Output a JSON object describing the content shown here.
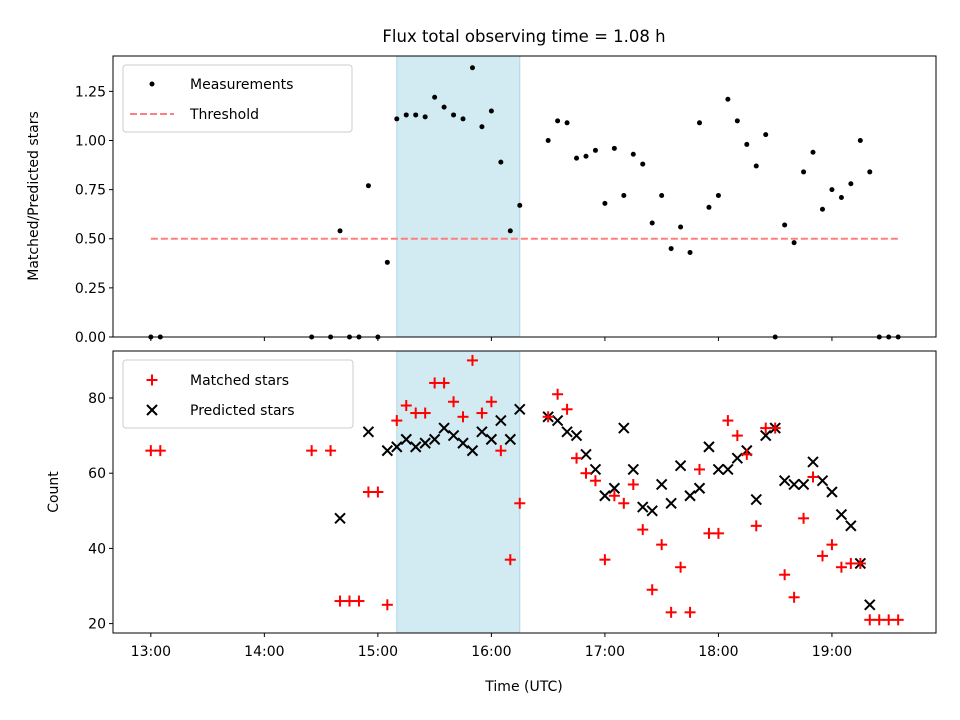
{
  "chart_data": [
    {
      "type": "scatter",
      "title": "Flux total observing time = 1.08 h",
      "xlabel": "",
      "ylabel": "Matched/Predicted stars",
      "xlim": [
        "12:40",
        "19:55"
      ],
      "ylim": [
        0,
        1.43
      ],
      "yticks": [
        "0.00",
        "0.25",
        "0.50",
        "0.75",
        "1.00",
        "1.25"
      ],
      "grid": false,
      "legend_position": "top-left",
      "highlight_span": {
        "start": "15:10",
        "end": "16:15",
        "color": "#add8e6"
      },
      "threshold": {
        "name": "Threshold",
        "value": 0.5,
        "x_start": "13:00",
        "x_end": "19:35",
        "color": "#ff7f7f",
        "style": "dashed"
      },
      "series": [
        {
          "name": "Measurements",
          "marker": "dot",
          "color": "#000000",
          "points": [
            [
              "13:00",
              0.0
            ],
            [
              "13:05",
              0.0
            ],
            [
              "14:25",
              0.0
            ],
            [
              "14:35",
              0.0
            ],
            [
              "14:40",
              0.54
            ],
            [
              "14:45",
              0.0
            ],
            [
              "14:50",
              0.0
            ],
            [
              "14:55",
              0.77
            ],
            [
              "15:00",
              0.0
            ],
            [
              "15:05",
              0.38
            ],
            [
              "15:10",
              1.11
            ],
            [
              "15:15",
              1.13
            ],
            [
              "15:20",
              1.13
            ],
            [
              "15:25",
              1.12
            ],
            [
              "15:30",
              1.22
            ],
            [
              "15:35",
              1.17
            ],
            [
              "15:40",
              1.13
            ],
            [
              "15:45",
              1.11
            ],
            [
              "15:50",
              1.37
            ],
            [
              "15:55",
              1.07
            ],
            [
              "16:00",
              1.15
            ],
            [
              "16:05",
              0.89
            ],
            [
              "16:10",
              0.54
            ],
            [
              "16:15",
              0.67
            ],
            [
              "16:30",
              1.0
            ],
            [
              "16:35",
              1.1
            ],
            [
              "16:40",
              1.09
            ],
            [
              "16:45",
              0.91
            ],
            [
              "16:50",
              0.92
            ],
            [
              "16:55",
              0.95
            ],
            [
              "17:00",
              0.68
            ],
            [
              "17:05",
              0.96
            ],
            [
              "17:10",
              0.72
            ],
            [
              "17:15",
              0.93
            ],
            [
              "17:20",
              0.88
            ],
            [
              "17:25",
              0.58
            ],
            [
              "17:30",
              0.72
            ],
            [
              "17:35",
              0.45
            ],
            [
              "17:40",
              0.56
            ],
            [
              "17:45",
              0.43
            ],
            [
              "17:50",
              1.09
            ],
            [
              "17:55",
              0.66
            ],
            [
              "18:00",
              0.72
            ],
            [
              "18:05",
              1.21
            ],
            [
              "18:10",
              1.1
            ],
            [
              "18:15",
              0.98
            ],
            [
              "18:20",
              0.87
            ],
            [
              "18:25",
              1.03
            ],
            [
              "18:30",
              0.0
            ],
            [
              "18:35",
              0.57
            ],
            [
              "18:40",
              0.48
            ],
            [
              "18:45",
              0.84
            ],
            [
              "18:50",
              0.94
            ],
            [
              "18:55",
              0.65
            ],
            [
              "19:00",
              0.75
            ],
            [
              "19:05",
              0.71
            ],
            [
              "19:10",
              0.78
            ],
            [
              "19:15",
              1.0
            ],
            [
              "19:20",
              0.84
            ],
            [
              "19:25",
              0.0
            ],
            [
              "19:30",
              0.0
            ],
            [
              "19:35",
              0.0
            ]
          ]
        }
      ]
    },
    {
      "type": "scatter",
      "title": "",
      "xlabel": "Time (UTC)",
      "ylabel": "Count",
      "xlim": [
        "12:40",
        "19:55"
      ],
      "ylim": [
        17.5,
        92.5
      ],
      "xticks": [
        "13:00",
        "14:00",
        "15:00",
        "16:00",
        "17:00",
        "18:00",
        "19:00"
      ],
      "yticks": [
        "20",
        "40",
        "60",
        "80"
      ],
      "grid": false,
      "legend_position": "top-left",
      "highlight_span": {
        "start": "15:10",
        "end": "16:15",
        "color": "#add8e6"
      },
      "series": [
        {
          "name": "Matched stars",
          "marker": "plus",
          "color": "#ff0000",
          "points": [
            [
              "13:00",
              66
            ],
            [
              "13:05",
              66
            ],
            [
              "14:25",
              66
            ],
            [
              "14:35",
              66
            ],
            [
              "14:40",
              26
            ],
            [
              "14:45",
              26
            ],
            [
              "14:50",
              26
            ],
            [
              "14:55",
              55
            ],
            [
              "15:00",
              55
            ],
            [
              "15:05",
              25
            ],
            [
              "15:10",
              74
            ],
            [
              "15:15",
              78
            ],
            [
              "15:20",
              76
            ],
            [
              "15:25",
              76
            ],
            [
              "15:30",
              84
            ],
            [
              "15:35",
              84
            ],
            [
              "15:40",
              79
            ],
            [
              "15:45",
              75
            ],
            [
              "15:50",
              90
            ],
            [
              "15:55",
              76
            ],
            [
              "16:00",
              79
            ],
            [
              "16:05",
              66
            ],
            [
              "16:10",
              37
            ],
            [
              "16:15",
              52
            ],
            [
              "16:30",
              75
            ],
            [
              "16:35",
              81
            ],
            [
              "16:40",
              77
            ],
            [
              "16:45",
              64
            ],
            [
              "16:50",
              60
            ],
            [
              "16:55",
              58
            ],
            [
              "17:00",
              37
            ],
            [
              "17:05",
              54
            ],
            [
              "17:10",
              52
            ],
            [
              "17:15",
              57
            ],
            [
              "17:20",
              45
            ],
            [
              "17:25",
              29
            ],
            [
              "17:30",
              41
            ],
            [
              "17:35",
              23
            ],
            [
              "17:40",
              35
            ],
            [
              "17:45",
              23
            ],
            [
              "17:50",
              61
            ],
            [
              "17:55",
              44
            ],
            [
              "18:00",
              44
            ],
            [
              "18:05",
              74
            ],
            [
              "18:10",
              70
            ],
            [
              "18:15",
              65
            ],
            [
              "18:20",
              46
            ],
            [
              "18:25",
              72
            ],
            [
              "18:30",
              72
            ],
            [
              "18:35",
              33
            ],
            [
              "18:40",
              27
            ],
            [
              "18:45",
              48
            ],
            [
              "18:50",
              59
            ],
            [
              "18:55",
              38
            ],
            [
              "19:00",
              41
            ],
            [
              "19:05",
              35
            ],
            [
              "19:10",
              36
            ],
            [
              "19:15",
              36
            ],
            [
              "19:20",
              21
            ],
            [
              "19:25",
              21
            ],
            [
              "19:30",
              21
            ],
            [
              "19:35",
              21
            ]
          ]
        },
        {
          "name": "Predicted stars",
          "marker": "x",
          "color": "#000000",
          "points": [
            [
              "14:40",
              48
            ],
            [
              "14:55",
              71
            ],
            [
              "15:05",
              66
            ],
            [
              "15:10",
              67
            ],
            [
              "15:15",
              69
            ],
            [
              "15:20",
              67
            ],
            [
              "15:25",
              68
            ],
            [
              "15:30",
              69
            ],
            [
              "15:35",
              72
            ],
            [
              "15:40",
              70
            ],
            [
              "15:45",
              68
            ],
            [
              "15:50",
              66
            ],
            [
              "15:55",
              71
            ],
            [
              "16:00",
              69
            ],
            [
              "16:05",
              74
            ],
            [
              "16:10",
              69
            ],
            [
              "16:15",
              77
            ],
            [
              "16:30",
              75
            ],
            [
              "16:35",
              74
            ],
            [
              "16:40",
              71
            ],
            [
              "16:45",
              70
            ],
            [
              "16:50",
              65
            ],
            [
              "16:55",
              61
            ],
            [
              "17:00",
              54
            ],
            [
              "17:05",
              56
            ],
            [
              "17:10",
              72
            ],
            [
              "17:15",
              61
            ],
            [
              "17:20",
              51
            ],
            [
              "17:25",
              50
            ],
            [
              "17:30",
              57
            ],
            [
              "17:35",
              52
            ],
            [
              "17:40",
              62
            ],
            [
              "17:45",
              54
            ],
            [
              "17:50",
              56
            ],
            [
              "17:55",
              67
            ],
            [
              "18:00",
              61
            ],
            [
              "18:05",
              61
            ],
            [
              "18:10",
              64
            ],
            [
              "18:15",
              66
            ],
            [
              "18:20",
              53
            ],
            [
              "18:25",
              70
            ],
            [
              "18:30",
              72
            ],
            [
              "18:35",
              58
            ],
            [
              "18:40",
              57
            ],
            [
              "18:45",
              57
            ],
            [
              "18:50",
              63
            ],
            [
              "18:55",
              58
            ],
            [
              "19:00",
              55
            ],
            [
              "19:05",
              49
            ],
            [
              "19:10",
              46
            ],
            [
              "19:15",
              36
            ],
            [
              "19:20",
              25
            ]
          ]
        }
      ]
    }
  ]
}
